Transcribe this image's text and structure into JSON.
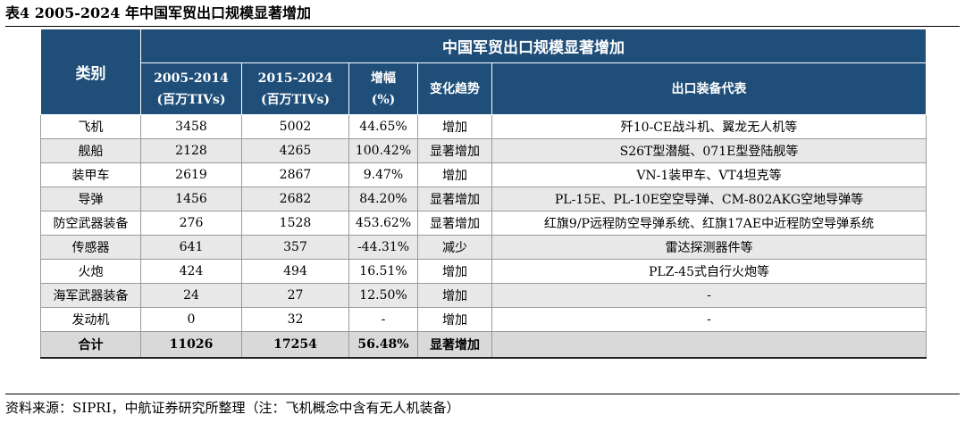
{
  "caption": "表4  2005-2024 年中国军贸出口规模显著增加",
  "table": {
    "header_top": "中国军贸出口规模显著增加",
    "col_category": "类别",
    "col_2005_line1": "2005-2014",
    "col_2005_line2": "(百万TIVs)",
    "col_2015_line1": "2015-2024",
    "col_2015_line2": "(百万TIVs)",
    "col_growth_line1": "增幅",
    "col_growth_line2": "(%)",
    "col_trend": "变化趋势",
    "col_equipment": "出口装备代表",
    "rows": [
      {
        "category": "飞机",
        "v2005": "3458",
        "v2015": "5002",
        "growth": "44.65%",
        "trend": "增加",
        "equipment": "歼10-CE战斗机、翼龙无人机等"
      },
      {
        "category": "舰船",
        "v2005": "2128",
        "v2015": "4265",
        "growth": "100.42%",
        "trend": "显著增加",
        "equipment": "S26T型潜艇、071E型登陆舰等"
      },
      {
        "category": "装甲车",
        "v2005": "2619",
        "v2015": "2867",
        "growth": "9.47%",
        "trend": "增加",
        "equipment": "VN-1装甲车、VT4坦克等"
      },
      {
        "category": "导弹",
        "v2005": "1456",
        "v2015": "2682",
        "growth": "84.20%",
        "trend": "显著增加",
        "equipment": "PL-15E、PL-10E空空导弹、CM-802AKG空地导弹等"
      },
      {
        "category": "防空武器装备",
        "v2005": "276",
        "v2015": "1528",
        "growth": "453.62%",
        "trend": "显著增加",
        "equipment": "红旗9/P远程防空导弹系统、红旗17AE中近程防空导弹系统"
      },
      {
        "category": "传感器",
        "v2005": "641",
        "v2015": "357",
        "growth": "-44.31%",
        "trend": "减少",
        "equipment": "雷达探测器件等"
      },
      {
        "category": "火炮",
        "v2005": "424",
        "v2015": "494",
        "growth": "16.51%",
        "trend": "增加",
        "equipment": "PLZ-45式自行火炮等"
      },
      {
        "category": "海军武器装备",
        "v2005": "24",
        "v2015": "27",
        "growth": "12.50%",
        "trend": "增加",
        "equipment": "-"
      },
      {
        "category": "发动机",
        "v2005": "0",
        "v2015": "32",
        "growth": "-",
        "trend": "增加",
        "equipment": "-"
      }
    ],
    "total": {
      "category": "合计",
      "v2005": "11026",
      "v2015": "17254",
      "growth": "56.48%",
      "trend": "显著增加",
      "equipment": ""
    }
  },
  "source": "资料来源：SIPRI，中航证券研究所整理（注：飞机概念中含有无人机装备）"
}
